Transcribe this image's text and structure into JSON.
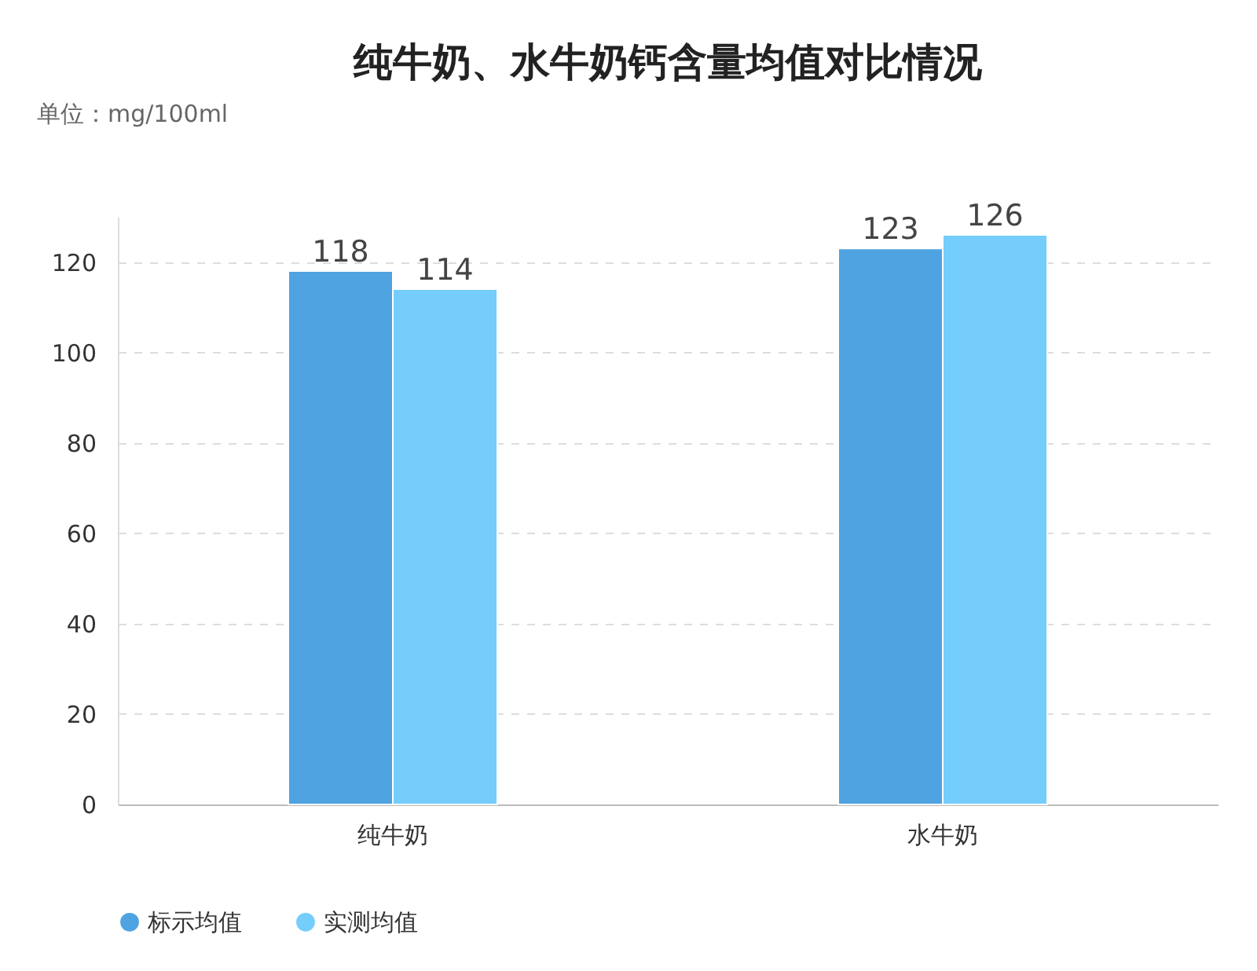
{
  "chart_data": {
    "type": "bar",
    "title": "纯牛奶、水牛奶钙含量均值对比情况",
    "ylabel": "单位：mg/100ml",
    "categories": [
      "纯牛奶",
      "水牛奶"
    ],
    "series": [
      {
        "name": "标示均值",
        "color": "#4fa3e0",
        "values": [
          118,
          123
        ]
      },
      {
        "name": "实测均值",
        "color": "#74cdfb",
        "values": [
          114,
          126
        ]
      }
    ],
    "ylim": [
      0,
      130
    ],
    "yticks": [
      0,
      20,
      40,
      60,
      80,
      100,
      120
    ],
    "grid": "y",
    "legend": "bottom",
    "data_labels": true
  }
}
